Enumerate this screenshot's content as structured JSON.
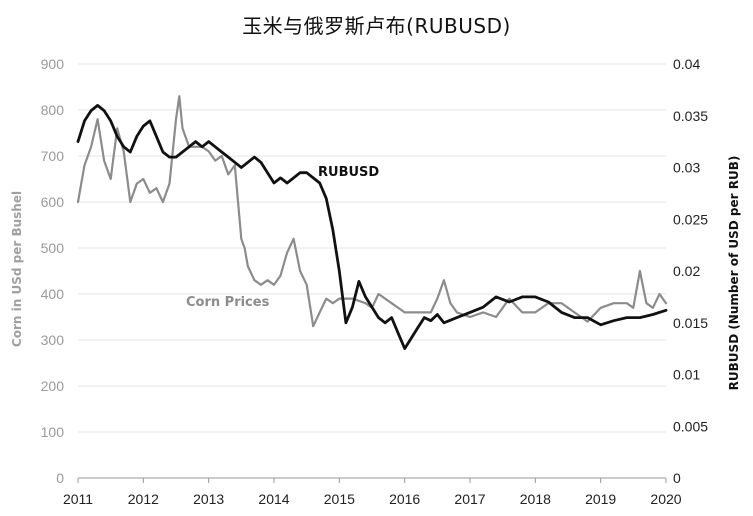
{
  "chart_data": {
    "type": "line",
    "title": "玉米与俄罗斯卢布(RUBUSD)",
    "x_ticks": [
      "2011",
      "2012",
      "2013",
      "2014",
      "2015",
      "2016",
      "2017",
      "2018",
      "2019",
      "2020"
    ],
    "xlim": [
      2011,
      2020
    ],
    "y_left": {
      "label": "Corn in USd per Bushel",
      "ticks": [
        "0",
        "100",
        "200",
        "300",
        "400",
        "500",
        "600",
        "700",
        "800",
        "900"
      ],
      "range": [
        0,
        900
      ]
    },
    "y_right": {
      "label": "RUBUSD (Number of USD per RUB)",
      "ticks": [
        "0",
        "0.005",
        "0.01",
        "0.015",
        "0.02",
        "0.025",
        "0.03",
        "0.035",
        "0.04"
      ],
      "range": [
        0,
        0.04
      ]
    },
    "grid": true,
    "series": [
      {
        "name": "Corn Prices",
        "axis": "left",
        "color": "#8c8c8c",
        "x": [
          2011.0,
          2011.1,
          2011.2,
          2011.3,
          2011.4,
          2011.5,
          2011.6,
          2011.7,
          2011.8,
          2011.9,
          2012.0,
          2012.1,
          2012.2,
          2012.3,
          2012.4,
          2012.5,
          2012.55,
          2012.6,
          2012.7,
          2012.8,
          2012.9,
          2013.0,
          2013.1,
          2013.2,
          2013.3,
          2013.4,
          2013.5,
          2013.55,
          2013.6,
          2013.7,
          2013.8,
          2013.9,
          2014.0,
          2014.1,
          2014.2,
          2014.3,
          2014.4,
          2014.5,
          2014.6,
          2014.7,
          2014.8,
          2014.9,
          2015.0,
          2015.2,
          2015.4,
          2015.5,
          2015.6,
          2015.8,
          2016.0,
          2016.2,
          2016.4,
          2016.5,
          2016.6,
          2016.7,
          2016.8,
          2017.0,
          2017.2,
          2017.4,
          2017.5,
          2017.6,
          2017.8,
          2018.0,
          2018.2,
          2018.4,
          2018.6,
          2018.8,
          2019.0,
          2019.2,
          2019.4,
          2019.5,
          2019.6,
          2019.7,
          2019.8,
          2019.9,
          2020.0
        ],
        "y": [
          600,
          680,
          720,
          780,
          690,
          650,
          760,
          710,
          600,
          640,
          650,
          620,
          630,
          600,
          640,
          780,
          830,
          760,
          720,
          720,
          720,
          710,
          690,
          700,
          660,
          680,
          520,
          500,
          460,
          430,
          420,
          430,
          420,
          440,
          490,
          520,
          450,
          420,
          330,
          360,
          390,
          380,
          390,
          390,
          380,
          370,
          400,
          380,
          360,
          360,
          360,
          390,
          430,
          380,
          360,
          350,
          360,
          350,
          370,
          390,
          360,
          360,
          380,
          380,
          360,
          340,
          370,
          380,
          380,
          370,
          450,
          380,
          370,
          400,
          380
        ]
      },
      {
        "name": "RUBUSD",
        "axis": "right",
        "color": "#111111",
        "x": [
          2011.0,
          2011.1,
          2011.2,
          2011.3,
          2011.4,
          2011.5,
          2011.6,
          2011.7,
          2011.8,
          2011.9,
          2012.0,
          2012.1,
          2012.2,
          2012.3,
          2012.4,
          2012.5,
          2012.6,
          2012.7,
          2012.8,
          2012.9,
          2013.0,
          2013.1,
          2013.2,
          2013.3,
          2013.4,
          2013.5,
          2013.6,
          2013.7,
          2013.8,
          2013.9,
          2014.0,
          2014.1,
          2014.2,
          2014.3,
          2014.4,
          2014.5,
          2014.6,
          2014.7,
          2014.8,
          2014.9,
          2015.0,
          2015.1,
          2015.2,
          2015.3,
          2015.4,
          2015.5,
          2015.6,
          2015.7,
          2015.8,
          2015.9,
          2016.0,
          2016.1,
          2016.2,
          2016.3,
          2016.4,
          2016.5,
          2016.6,
          2016.8,
          2017.0,
          2017.2,
          2017.4,
          2017.6,
          2017.8,
          2018.0,
          2018.2,
          2018.4,
          2018.6,
          2018.8,
          2019.0,
          2019.2,
          2019.4,
          2019.6,
          2019.8,
          2020.0
        ],
        "y": [
          0.0325,
          0.0345,
          0.0355,
          0.036,
          0.0355,
          0.0345,
          0.033,
          0.032,
          0.0315,
          0.033,
          0.034,
          0.0345,
          0.033,
          0.0315,
          0.031,
          0.031,
          0.0315,
          0.032,
          0.0325,
          0.032,
          0.0325,
          0.032,
          0.0315,
          0.031,
          0.0305,
          0.03,
          0.0305,
          0.031,
          0.0305,
          0.0295,
          0.0285,
          0.029,
          0.0285,
          0.029,
          0.0295,
          0.0295,
          0.029,
          0.0285,
          0.027,
          0.024,
          0.02,
          0.015,
          0.0165,
          0.019,
          0.0175,
          0.0165,
          0.0155,
          0.015,
          0.0155,
          0.014,
          0.0125,
          0.0135,
          0.0145,
          0.0155,
          0.0152,
          0.0158,
          0.015,
          0.0155,
          0.016,
          0.0165,
          0.0175,
          0.017,
          0.0175,
          0.0175,
          0.017,
          0.016,
          0.0155,
          0.0155,
          0.0148,
          0.0152,
          0.0155,
          0.0155,
          0.0158,
          0.0162
        ]
      }
    ]
  }
}
